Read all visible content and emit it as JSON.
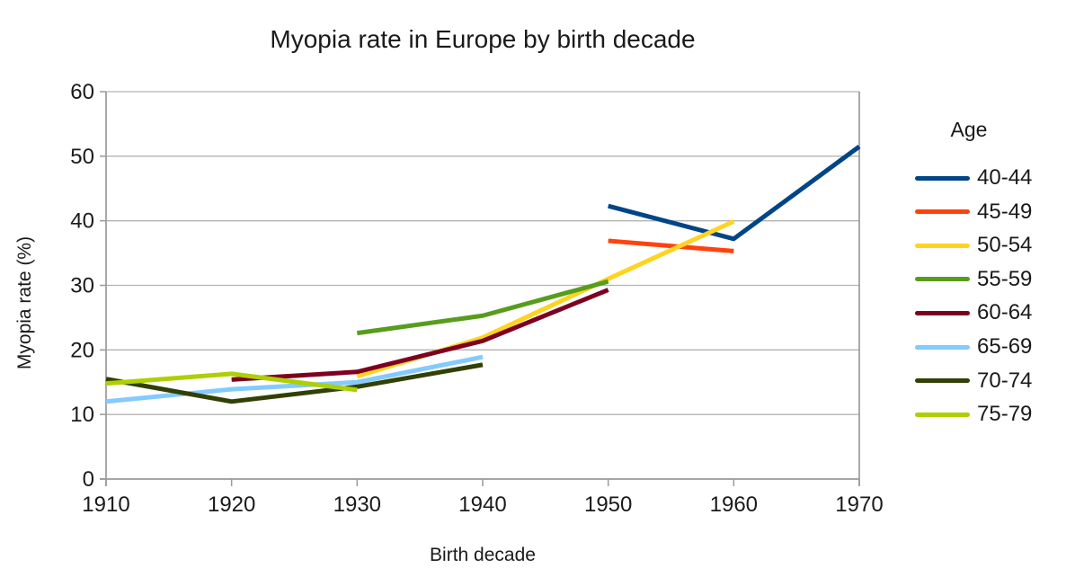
{
  "title": "Myopia rate in Europe by birth decade",
  "chart_data": {
    "type": "line",
    "title": "Myopia rate in Europe by birth decade",
    "xlabel": "Birth decade",
    "ylabel": "Myopia rate (%)",
    "legend_title": "Age",
    "legend_position": "right",
    "grid": true,
    "x": [
      1910,
      1920,
      1930,
      1940,
      1950,
      1960,
      1970
    ],
    "xlim": [
      1910,
      1970
    ],
    "ylim": [
      0,
      60
    ],
    "y_ticks": [
      0,
      10,
      20,
      30,
      40,
      50,
      60
    ],
    "x_ticks": [
      1910,
      1920,
      1930,
      1940,
      1950,
      1960,
      1970
    ],
    "series": [
      {
        "name": "40-44",
        "color": "#004586",
        "values": [
          null,
          null,
          null,
          null,
          42.3,
          37.2,
          51.5
        ]
      },
      {
        "name": "45-49",
        "color": "#ff420e",
        "values": [
          null,
          null,
          null,
          null,
          36.9,
          35.3,
          null
        ]
      },
      {
        "name": "50-54",
        "color": "#ffd320",
        "values": [
          null,
          null,
          15.9,
          21.9,
          31.0,
          39.9,
          null
        ]
      },
      {
        "name": "55-59",
        "color": "#579d1c",
        "values": [
          null,
          null,
          22.6,
          25.3,
          30.6,
          null,
          null
        ]
      },
      {
        "name": "60-64",
        "color": "#7e0021",
        "values": [
          null,
          15.4,
          16.6,
          21.4,
          29.3,
          null,
          null
        ]
      },
      {
        "name": "65-69",
        "color": "#83caff",
        "values": [
          12.0,
          13.9,
          15.0,
          18.9,
          null,
          null,
          null
        ]
      },
      {
        "name": "70-74",
        "color": "#314004",
        "values": [
          15.5,
          12.0,
          14.3,
          17.7,
          null,
          null,
          null
        ]
      },
      {
        "name": "75-79",
        "color": "#aecf00",
        "values": [
          14.8,
          16.3,
          13.8,
          null,
          null,
          null,
          null
        ]
      }
    ]
  },
  "style_colors": {
    "gridline": "#b3b3b3",
    "axis": "#9a9a9a",
    "text": "#1a1a1a"
  }
}
